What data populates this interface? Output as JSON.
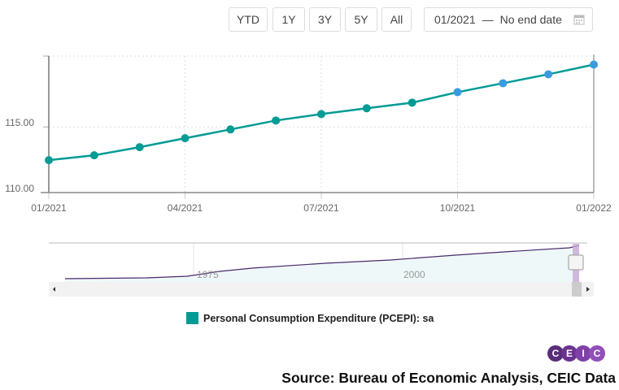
{
  "range_buttons": [
    "YTD",
    "1Y",
    "3Y",
    "5Y",
    "All"
  ],
  "date_range": {
    "start": "01/2021",
    "separator": "—",
    "end": "No end date"
  },
  "navigator": {
    "labels": [
      "1975",
      "2000"
    ]
  },
  "colors": {
    "series": "#009b95",
    "forecast_point": "#3a9be0",
    "navigator_line": "#4b2a6e",
    "navigator_fill": "#eef8f8"
  },
  "source": "Source: Bureau of Economic Analysis, CEIC Data",
  "logo": [
    "C",
    "E",
    "I",
    "C"
  ],
  "chart_data": {
    "type": "line",
    "x": [
      "01/2021",
      "02/2021",
      "03/2021",
      "04/2021",
      "05/2021",
      "06/2021",
      "07/2021",
      "08/2021",
      "09/2021",
      "10/2021",
      "11/2021",
      "12/2021",
      "01/2022"
    ],
    "series": [
      {
        "name": "Personal Consumption Expenditure (PCEPI): sa",
        "values": [
          112.47,
          112.84,
          113.46,
          114.14,
          114.81,
          115.49,
          115.98,
          116.42,
          116.85,
          117.65,
          118.33,
          119.01,
          119.75
        ]
      }
    ],
    "x_tick_labels": [
      "01/2021",
      "04/2021",
      "07/2021",
      "10/2021",
      "01/2022"
    ],
    "y_tick_labels": [
      "110.00",
      "115.00"
    ],
    "ylim": [
      110,
      120.4
    ],
    "grid": true,
    "legend": "bottom"
  }
}
